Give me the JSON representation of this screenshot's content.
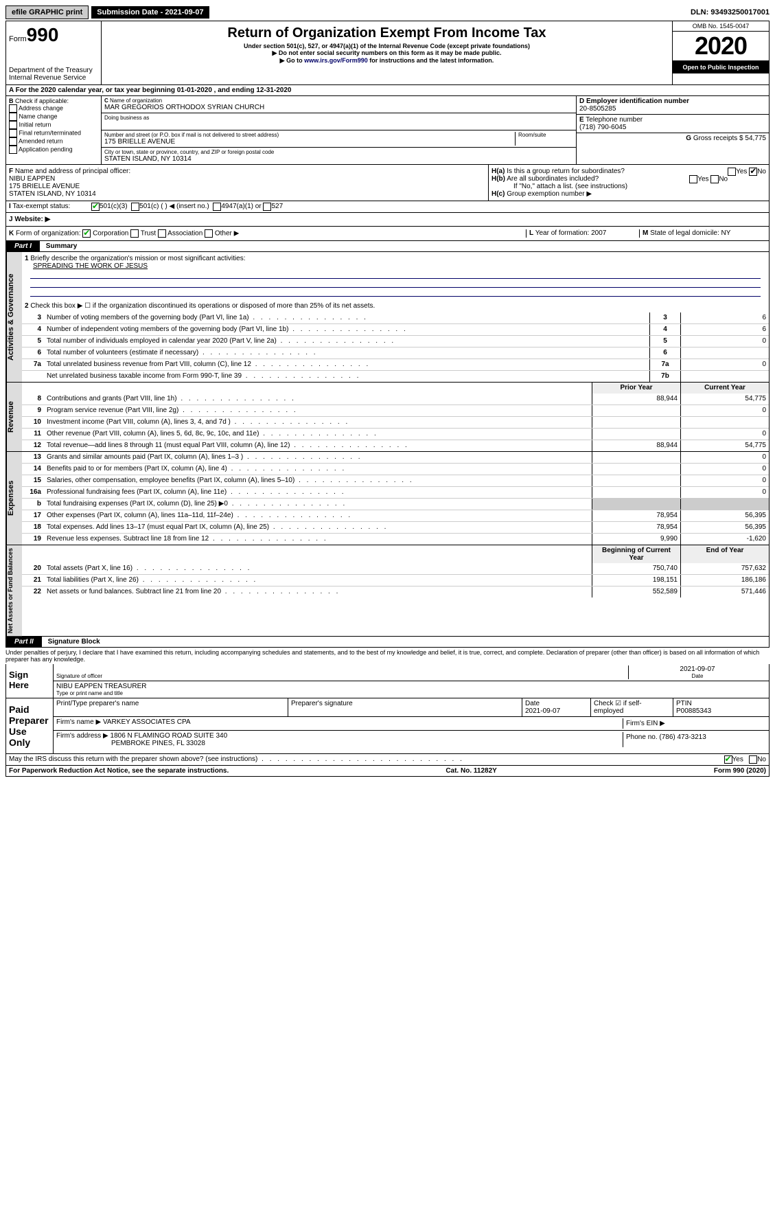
{
  "topbar": {
    "efile_label": "efile GRAPHIC print",
    "submission_label": "Submission Date - 2021-09-07",
    "dln": "DLN: 93493250017001"
  },
  "header": {
    "form_prefix": "Form",
    "form_number": "990",
    "department": "Department of the Treasury",
    "irs": "Internal Revenue Service",
    "title": "Return of Organization Exempt From Income Tax",
    "subtitle": "Under section 501(c), 527, or 4947(a)(1) of the Internal Revenue Code (except private foundations)",
    "note1": "▶ Do not enter social security numbers on this form as it may be made public.",
    "note2_prefix": "▶ Go to ",
    "note2_link": "www.irs.gov/Form990",
    "note2_suffix": " for instructions and the latest information.",
    "omb": "OMB No. 1545-0047",
    "year": "2020",
    "open": "Open to Public Inspection"
  },
  "period": {
    "text": "For the 2020 calendar year, or tax year beginning 01-01-2020     , and ending 12-31-2020"
  },
  "box_b": {
    "label": "Check if applicable:",
    "opts": [
      "Address change",
      "Name change",
      "Initial return",
      "Final return/terminated",
      "Amended return",
      "Application pending"
    ]
  },
  "box_c": {
    "name_label": "Name of organization",
    "name": "MAR GREGORIOS ORTHODOX SYRIAN CHURCH",
    "dba_label": "Doing business as",
    "addr_label": "Number and street (or P.O. box if mail is not delivered to street address)",
    "room_label": "Room/suite",
    "addr": "175 BRIELLE AVENUE",
    "city_label": "City or town, state or province, country, and ZIP or foreign postal code",
    "city": "STATEN ISLAND, NY  10314"
  },
  "box_d": {
    "label": "Employer identification number",
    "val": "20-8505285"
  },
  "box_e": {
    "label": "Telephone number",
    "val": "(718) 790-6045"
  },
  "box_g": {
    "label": "Gross receipts $",
    "val": "54,775"
  },
  "box_f": {
    "label": "Name and address of principal officer:",
    "name": "NIBU EAPPEN",
    "addr1": "175 BRIELLE AVENUE",
    "addr2": "STATEN ISLAND, NY  10314"
  },
  "box_h": {
    "a": "Is this a group return for subordinates?",
    "b": "Are all subordinates included?",
    "b_note": "If \"No,\" attach a list. (see instructions)",
    "c": "Group exemption number ▶"
  },
  "tax_exempt": {
    "label": "Tax-exempt status:",
    "opt1": "501(c)(3)",
    "opt2": "501(c) (  ) ◀ (insert no.)",
    "opt3": "4947(a)(1) or",
    "opt4": "527"
  },
  "website": {
    "label": "Website: ▶"
  },
  "box_k": {
    "label": "Form of organization:",
    "opts": [
      "Corporation",
      "Trust",
      "Association",
      "Other ▶"
    ]
  },
  "box_l": {
    "label": "Year of formation:",
    "val": "2007"
  },
  "box_m": {
    "label": "State of legal domicile:",
    "val": "NY"
  },
  "part1": {
    "hdr": "Part I",
    "title": "Summary",
    "l1": "Briefly describe the organization's mission or most significant activities:",
    "l1_val": "SPREADING THE WORK OF JESUS",
    "l2": "Check this box ▶ ☐  if the organization discontinued its operations or disposed of more than 25% of its net assets.",
    "gov_label": "Activities & Governance",
    "rev_label": "Revenue",
    "exp_label": "Expenses",
    "net_label": "Net Assets or Fund Balances",
    "lines": [
      {
        "n": "3",
        "t": "Number of voting members of the governing body (Part VI, line 1a)",
        "box": "3",
        "v": "6"
      },
      {
        "n": "4",
        "t": "Number of independent voting members of the governing body (Part VI, line 1b)",
        "box": "4",
        "v": "6"
      },
      {
        "n": "5",
        "t": "Total number of individuals employed in calendar year 2020 (Part V, line 2a)",
        "box": "5",
        "v": "0"
      },
      {
        "n": "6",
        "t": "Total number of volunteers (estimate if necessary)",
        "box": "6",
        "v": ""
      },
      {
        "n": "7a",
        "t": "Total unrelated business revenue from Part VIII, column (C), line 12",
        "box": "7a",
        "v": "0"
      },
      {
        "n": "",
        "t": "Net unrelated business taxable income from Form 990-T, line 39",
        "box": "7b",
        "v": ""
      }
    ],
    "col_prior": "Prior Year",
    "col_current": "Current Year",
    "rev_lines": [
      {
        "n": "8",
        "t": "Contributions and grants (Part VIII, line 1h)",
        "p": "88,944",
        "c": "54,775"
      },
      {
        "n": "9",
        "t": "Program service revenue (Part VIII, line 2g)",
        "p": "",
        "c": "0"
      },
      {
        "n": "10",
        "t": "Investment income (Part VIII, column (A), lines 3, 4, and 7d )",
        "p": "",
        "c": ""
      },
      {
        "n": "11",
        "t": "Other revenue (Part VIII, column (A), lines 5, 6d, 8c, 9c, 10c, and 11e)",
        "p": "",
        "c": "0"
      },
      {
        "n": "12",
        "t": "Total revenue—add lines 8 through 11 (must equal Part VIII, column (A), line 12)",
        "p": "88,944",
        "c": "54,775"
      }
    ],
    "exp_lines": [
      {
        "n": "13",
        "t": "Grants and similar amounts paid (Part IX, column (A), lines 1–3 )",
        "p": "",
        "c": "0"
      },
      {
        "n": "14",
        "t": "Benefits paid to or for members (Part IX, column (A), line 4)",
        "p": "",
        "c": "0"
      },
      {
        "n": "15",
        "t": "Salaries, other compensation, employee benefits (Part IX, column (A), lines 5–10)",
        "p": "",
        "c": "0"
      },
      {
        "n": "16a",
        "t": "Professional fundraising fees (Part IX, column (A), line 11e)",
        "p": "",
        "c": "0"
      },
      {
        "n": "b",
        "t": "Total fundraising expenses (Part IX, column (D), line 25) ▶0",
        "p": "—",
        "c": "—"
      },
      {
        "n": "17",
        "t": "Other expenses (Part IX, column (A), lines 11a–11d, 11f–24e)",
        "p": "78,954",
        "c": "56,395"
      },
      {
        "n": "18",
        "t": "Total expenses. Add lines 13–17 (must equal Part IX, column (A), line 25)",
        "p": "78,954",
        "c": "56,395"
      },
      {
        "n": "19",
        "t": "Revenue less expenses. Subtract line 18 from line 12",
        "p": "9,990",
        "c": "-1,620"
      }
    ],
    "col_begin": "Beginning of Current Year",
    "col_end": "End of Year",
    "net_lines": [
      {
        "n": "20",
        "t": "Total assets (Part X, line 16)",
        "p": "750,740",
        "c": "757,632"
      },
      {
        "n": "21",
        "t": "Total liabilities (Part X, line 26)",
        "p": "198,151",
        "c": "186,186"
      },
      {
        "n": "22",
        "t": "Net assets or fund balances. Subtract line 21 from line 20",
        "p": "552,589",
        "c": "571,446"
      }
    ]
  },
  "part2": {
    "hdr": "Part II",
    "title": "Signature Block",
    "perjury": "Under penalties of perjury, I declare that I have examined this return, including accompanying schedules and statements, and to the best of my knowledge and belief, it is true, correct, and complete. Declaration of preparer (other than officer) is based on all information of which preparer has any knowledge.",
    "sign_here": "Sign Here",
    "sig_officer": "Signature of officer",
    "date_label": "Date",
    "date": "2021-09-07",
    "name_title": "NIBU EAPPEN  TREASURER",
    "name_title_label": "Type or print name and title",
    "paid": "Paid Preparer Use Only",
    "prep_name_label": "Print/Type preparer's name",
    "prep_sig_label": "Preparer's signature",
    "prep_date": "2021-09-07",
    "check_self": "Check ☑ if self-employed",
    "ptin_label": "PTIN",
    "ptin": "P00885343",
    "firm_name_label": "Firm's name    ▶",
    "firm_name": "VARKEY ASSOCIATES CPA",
    "firm_ein_label": "Firm's EIN ▶",
    "firm_addr_label": "Firm's address ▶",
    "firm_addr1": "1806 N FLAMINGO ROAD SUITE 340",
    "firm_addr2": "PEMBROKE PINES, FL  33028",
    "phone_label": "Phone no.",
    "phone": "(786) 473-3213",
    "discuss": "May the IRS discuss this return with the preparer shown above? (see instructions)"
  },
  "footer": {
    "pra": "For Paperwork Reduction Act Notice, see the separate instructions.",
    "cat": "Cat. No. 11282Y",
    "form": "Form 990 (2020)"
  }
}
